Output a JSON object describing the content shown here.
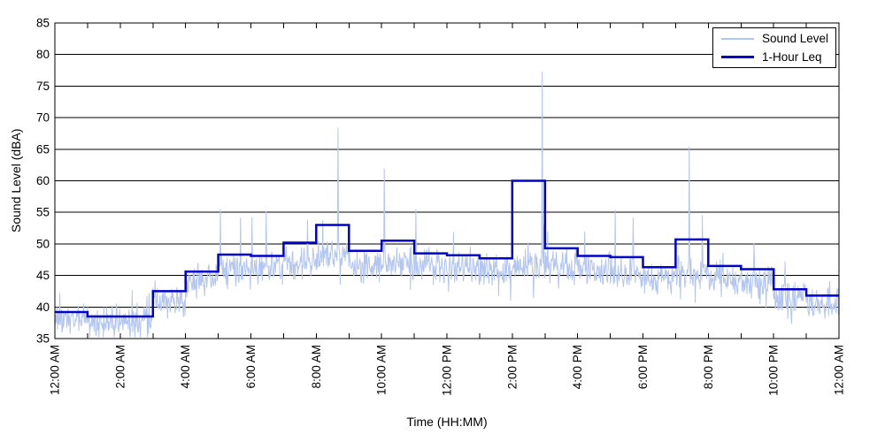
{
  "colors": {
    "background": "#ffffff",
    "axis": "#000000",
    "grid": "#000000",
    "sound_level_line": "#b3c6f0",
    "leq_line": "#0000cc"
  },
  "chart_data": {
    "type": "line",
    "title": "",
    "xlabel": "Time (HH:MM)",
    "ylabel": "Sound Level (dBA)",
    "ylim": [
      35,
      85
    ],
    "ytick_step": 5,
    "ytick_labels": [
      "35",
      "40",
      "45",
      "50",
      "55",
      "60",
      "65",
      "70",
      "75",
      "80",
      "85"
    ],
    "xtick_hours": [
      0,
      2,
      4,
      6,
      8,
      10,
      12,
      14,
      16,
      18,
      20,
      22,
      24
    ],
    "xtick_labels": [
      "12:00 AM",
      "2:00 AM",
      "4:00 AM",
      "6:00 AM",
      "8:00 AM",
      "10:00 AM",
      "12:00 PM",
      "2:00 PM",
      "4:00 PM",
      "6:00 PM",
      "8:00 PM",
      "10:00 PM",
      "12:00 AM"
    ],
    "minor_tick_every_hours": 1,
    "grid": true,
    "box": true,
    "legend": {
      "position": "top-right",
      "entries": [
        {
          "label": "Sound Level",
          "color": "#b3c6f0",
          "line_width": 1
        },
        {
          "label": "1-Hour Leq",
          "color": "#0000cc",
          "line_width": 3
        }
      ]
    },
    "series": [
      {
        "name": "Sound Level",
        "style": "noisy-minute-trace",
        "color": "#b3c6f0",
        "description": "Per-minute sound level fluctuating around each hour's ambient level",
        "noise": {
          "seed": 1337,
          "ambient_levels": [
            38.3,
            37.6,
            37.6,
            40.8,
            44.3,
            46.3,
            46.4,
            47.3,
            48.3,
            46.8,
            47.3,
            46.6,
            46.5,
            46.0,
            46.5,
            46.6,
            46.0,
            45.6,
            44.6,
            45.4,
            44.5,
            44.0,
            41.4,
            40.6
          ],
          "amplitude": 3.0,
          "spike_probability": 0.016,
          "dip_probability": 0.013,
          "floor": 35.2
        },
        "notable_spikes": [
          {
            "time": "8:40 AM",
            "value": 68.4
          },
          {
            "time": "10:05 AM",
            "value": 61.9
          },
          {
            "time": "2:55 PM",
            "value": 77.3
          },
          {
            "time": "7:25 PM",
            "value": 65.4
          }
        ]
      },
      {
        "name": "1-Hour Leq",
        "style": "step",
        "color": "#0000cc",
        "hour_start_labels": [
          "12 AM",
          "1 AM",
          "2 AM",
          "3 AM",
          "4 AM",
          "5 AM",
          "6 AM",
          "7 AM",
          "8 AM",
          "9 AM",
          "10 AM",
          "11 AM",
          "12 PM",
          "1 PM",
          "2 PM",
          "3 PM",
          "4 PM",
          "5 PM",
          "6 PM",
          "7 PM",
          "8 PM",
          "9 PM",
          "10 PM",
          "11 PM"
        ],
        "values": [
          39.2,
          38.5,
          38.5,
          42.5,
          45.6,
          48.3,
          48.1,
          50.2,
          53.0,
          48.9,
          50.5,
          48.5,
          48.2,
          47.7,
          60.0,
          49.3,
          48.1,
          47.9,
          46.3,
          50.7,
          46.5,
          46.0,
          42.8,
          41.8
        ]
      }
    ]
  }
}
